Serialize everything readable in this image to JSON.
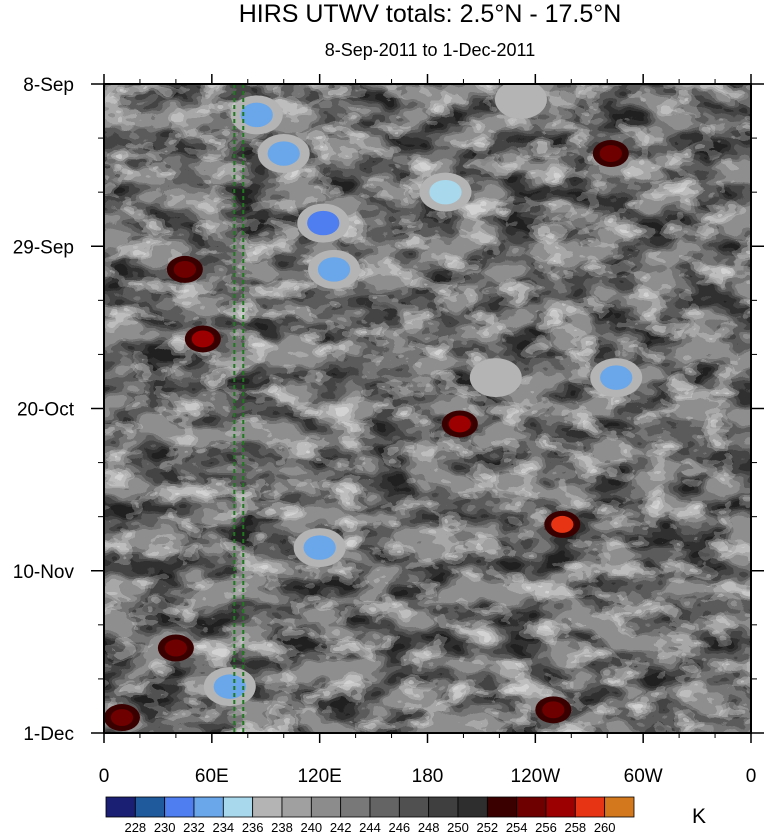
{
  "chart_data": {
    "type": "heatmap",
    "title": "HIRS UTWV totals: 2.5°N - 17.5°N",
    "subtitle": "8-Sep-2011 to 1-Dec-2011",
    "units": "K",
    "x_ticks": [
      {
        "lon": 0,
        "label": "0"
      },
      {
        "lon": 60,
        "label": "60E"
      },
      {
        "lon": 120,
        "label": "120E"
      },
      {
        "lon": 180,
        "label": "180"
      },
      {
        "lon": 240,
        "label": "120W"
      },
      {
        "lon": 300,
        "label": "60W"
      },
      {
        "lon": 360,
        "label": "0"
      }
    ],
    "y_ticks": [
      {
        "day": 0,
        "label": "8-Sep"
      },
      {
        "day": 21,
        "label": "29-Sep"
      },
      {
        "day": 42,
        "label": "20-Oct"
      },
      {
        "day": 63,
        "label": "10-Nov"
      },
      {
        "day": 84,
        "label": "1-Dec"
      }
    ],
    "xlim": [
      0,
      360
    ],
    "ylim": [
      0,
      84
    ],
    "colorbar": {
      "levels": [
        "228",
        "230",
        "232",
        "234",
        "236",
        "238",
        "240",
        "242",
        "244",
        "246",
        "248",
        "250",
        "252",
        "254",
        "256",
        "258",
        "260"
      ],
      "colors": [
        "#1b1f73",
        "#1f5a9c",
        "#4f7ef0",
        "#6aa7ea",
        "#a8d8ec",
        "#b4b4b4",
        "#a0a0a0",
        "#8c8c8c",
        "#787878",
        "#646464",
        "#505050",
        "#3f3f3f",
        "#2e2e2e",
        "#3a0000",
        "#6e0000",
        "#9c0000",
        "#e63414",
        "#d4781e"
      ]
    },
    "reference_lines_lon": [
      72.5,
      77.5
    ],
    "features": [
      {
        "lon": 85,
        "day": 4,
        "value": 233
      },
      {
        "lon": 100,
        "day": 9,
        "value": 232
      },
      {
        "lon": 122,
        "day": 18,
        "value": 230
      },
      {
        "lon": 128,
        "day": 24,
        "value": 233
      },
      {
        "lon": 190,
        "day": 14,
        "value": 234
      },
      {
        "lon": 232,
        "day": 2,
        "value": 236
      },
      {
        "lon": 218,
        "day": 38,
        "value": 236
      },
      {
        "lon": 285,
        "day": 38,
        "value": 233
      },
      {
        "lon": 120,
        "day": 60,
        "value": 233
      },
      {
        "lon": 55,
        "day": 33,
        "value": 256
      },
      {
        "lon": 45,
        "day": 24,
        "value": 255
      },
      {
        "lon": 198,
        "day": 44,
        "value": 256
      },
      {
        "lon": 255,
        "day": 57,
        "value": 259
      },
      {
        "lon": 282,
        "day": 9,
        "value": 255
      },
      {
        "lon": 10,
        "day": 82,
        "value": 255
      },
      {
        "lon": 250,
        "day": 81,
        "value": 255
      },
      {
        "lon": 70,
        "day": 78,
        "value": 233
      },
      {
        "lon": 40,
        "day": 73,
        "value": 255
      }
    ]
  }
}
